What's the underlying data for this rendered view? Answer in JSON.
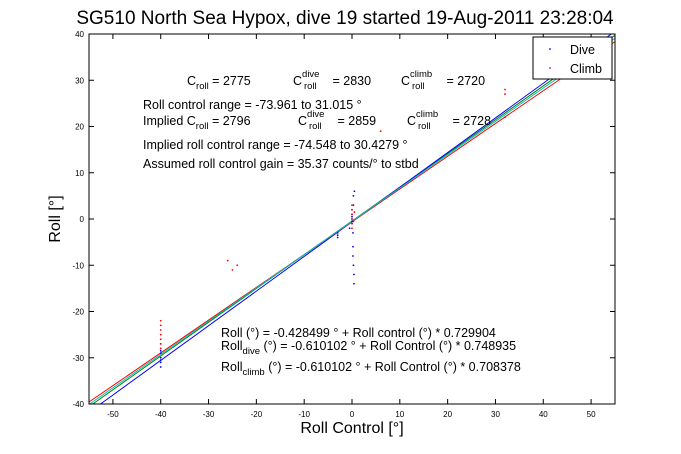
{
  "chart_data": {
    "type": "scatter",
    "title": "SG510 North Sea Hypox, dive 19 started 19-Aug-2011 23:28:04",
    "xlabel": "Roll Control [°]",
    "ylabel": "Roll [°]",
    "xlim": [
      -55,
      55
    ],
    "ylim": [
      -40,
      40
    ],
    "xticks": [
      -50,
      -40,
      -30,
      -20,
      -10,
      0,
      10,
      20,
      30,
      40,
      50
    ],
    "yticks": [
      -40,
      -30,
      -20,
      -10,
      0,
      10,
      20,
      30,
      40
    ],
    "grid": false,
    "legend": {
      "placement": "top-right",
      "entries": [
        "Dive",
        "Climb"
      ]
    },
    "series": [
      {
        "name": "Dive",
        "color": "#0000ff",
        "points": [
          [
            -40,
            -27
          ],
          [
            -40,
            -28
          ],
          [
            -40,
            -29
          ],
          [
            -40,
            -30
          ],
          [
            -40,
            -31
          ],
          [
            -40,
            -32
          ],
          [
            -40,
            -28.5
          ],
          [
            -40,
            -30.5
          ],
          [
            -3,
            -3
          ],
          [
            -3,
            -3.5
          ],
          [
            -3,
            -4
          ],
          [
            -0.5,
            -2
          ],
          [
            0,
            -1
          ],
          [
            0,
            0
          ],
          [
            0,
            1
          ],
          [
            0,
            2
          ],
          [
            0,
            -0.5
          ],
          [
            0,
            0.5
          ],
          [
            0.2,
            -3
          ],
          [
            0.2,
            -6
          ],
          [
            0.2,
            -8
          ],
          [
            0.3,
            -10
          ],
          [
            0.4,
            -12
          ],
          [
            0.4,
            -14
          ],
          [
            0.3,
            3
          ],
          [
            0.3,
            5
          ],
          [
            0.5,
            6
          ]
        ]
      },
      {
        "name": "Climb",
        "color": "#ff0000",
        "points": [
          [
            -40,
            -22
          ],
          [
            -40,
            -23
          ],
          [
            -40,
            -24
          ],
          [
            -40,
            -25
          ],
          [
            -40,
            -26
          ],
          [
            -40,
            -27
          ],
          [
            -40,
            -28
          ],
          [
            -26,
            -9
          ],
          [
            -25,
            -11
          ],
          [
            -24,
            -10
          ],
          [
            0,
            -2
          ],
          [
            0,
            -1
          ],
          [
            0,
            0
          ],
          [
            0,
            1
          ],
          [
            0,
            2
          ],
          [
            0,
            3
          ],
          [
            0.3,
            -0.5
          ],
          [
            0.5,
            1.5
          ],
          [
            6,
            19
          ],
          [
            32,
            22
          ],
          [
            32,
            27
          ],
          [
            32,
            28
          ]
        ]
      }
    ],
    "fits": [
      {
        "color": "#008000",
        "intercept": -0.428499,
        "slope": 0.729904
      },
      {
        "color": "#0000ff",
        "intercept": -0.610102,
        "slope": 0.748935
      },
      {
        "color": "#ff0000",
        "intercept": -0.610102,
        "slope": 0.708378
      },
      {
        "color": "#00bfbf",
        "intercept": -0.5,
        "slope": 0.72
      }
    ],
    "annotations": {
      "c_roll": {
        "prefix": "C",
        "sub": "roll",
        "value": " = 2775"
      },
      "c_roll_dive": {
        "prefix": "C",
        "sup": "dive",
        "sub": "roll",
        "value": " = 2830"
      },
      "c_roll_climb": {
        "prefix": "C",
        "sup": "climb",
        "sub": "roll",
        "value": " = 2720"
      },
      "range": "Roll control range = -73.961 to 31.015 °",
      "implied_c_roll": {
        "prefix": "Implied C",
        "sub": "roll",
        "value": " = 2796"
      },
      "implied_c_roll_dive": {
        "prefix": "C",
        "sup": "dive",
        "sub": "roll",
        "value": " = 2859"
      },
      "implied_c_roll_climb": {
        "prefix": "C",
        "sup": "climb",
        "sub": "roll",
        "value": " = 2728"
      },
      "implied_range": "Implied roll control range = -74.548 to 30.4279 °",
      "gain": "Assumed roll control gain = 35.37 counts/° to stbd",
      "fit_all": "Roll (°) = -0.428499 ° + Roll control (°) * 0.729904",
      "fit_dive": {
        "prefix": "Roll",
        "sub": "dive",
        "value": " (°) = -0.610102 ° + Roll Control (°) * 0.748935"
      },
      "fit_climb": {
        "prefix": "Roll",
        "sub": "climb",
        "value": " (°) = -0.610102 ° + Roll Control (°) * 0.708378"
      }
    }
  }
}
